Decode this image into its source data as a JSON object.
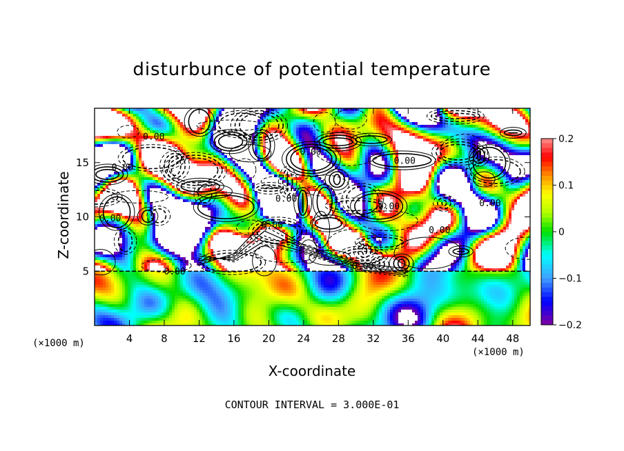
{
  "chart_data": {
    "type": "heatmap",
    "title": "disturbunce of potential temperature",
    "xlabel": "X-coordinate",
    "ylabel": "Z-coordinate",
    "x_unit": "(×1000 m)",
    "y_unit": "(×1000 m)",
    "xlim": [
      0,
      50
    ],
    "ylim": [
      0,
      20
    ],
    "x_ticks": [
      4,
      8,
      12,
      16,
      20,
      24,
      28,
      32,
      36,
      40,
      44,
      48
    ],
    "y_ticks": [
      5,
      10,
      15
    ],
    "colorbar": {
      "range": [
        -0.2,
        0.2
      ],
      "tick_labels": [
        "0.2",
        "0.1",
        "0",
        "−0.1",
        "−0.2"
      ],
      "tick_values": [
        0.2,
        0.1,
        0,
        -0.1,
        -0.2
      ]
    },
    "contour_label": "0.00",
    "contour_label_positions": [
      {
        "x": 6.8,
        "z": 17.1
      },
      {
        "x": 3.2,
        "z": 14.3
      },
      {
        "x": 1.8,
        "z": 9.6
      },
      {
        "x": 24.8,
        "z": 15.7
      },
      {
        "x": 22.0,
        "z": 11.4
      },
      {
        "x": 20.4,
        "z": 9.0
      },
      {
        "x": 35.6,
        "z": 14.9
      },
      {
        "x": 33.8,
        "z": 10.7
      },
      {
        "x": 39.6,
        "z": 8.5
      },
      {
        "x": 45.4,
        "z": 11.0
      },
      {
        "x": 9.2,
        "z": 4.7
      },
      {
        "x": 30.8,
        "z": 5.2
      }
    ],
    "legend": "none",
    "grid": false
  },
  "footer": "CONTOUR INTERVAL = 3.000E-01",
  "colors": {
    "magenta": "#8000a0",
    "blue": "#0000ff",
    "light_blue": "#40a0ff",
    "cyan": "#00ffff",
    "green": "#00e000",
    "light_green": "#b0ff00",
    "yellow": "#ffff00",
    "orange": "#ff9000",
    "red": "#ff0000",
    "pink": "#ff9090"
  }
}
